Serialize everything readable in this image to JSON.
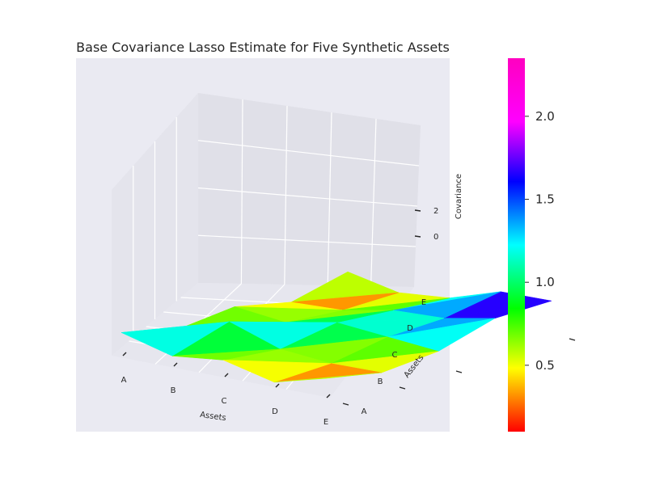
{
  "chart_data": {
    "type": "surface3d",
    "title": "Base Covariance Lasso Estimate for Five Synthetic Assets",
    "xlabel": "Assets",
    "ylabel": "Assets",
    "zlabel": "Covariance",
    "x_categories": [
      "A",
      "B",
      "C",
      "D",
      "E"
    ],
    "y_categories": [
      "A",
      "B",
      "C",
      "D",
      "E"
    ],
    "z_ticks": [
      "0",
      "2"
    ],
    "colormap": "hsv",
    "colorbar_ticks": [
      "0.5",
      "1.0",
      "1.5",
      "2.0"
    ],
    "colorbar_range": [
      0.1,
      2.35
    ],
    "grid": true,
    "matrix": [
      [
        1.6,
        0.6,
        1.1,
        0.2,
        1.3
      ],
      [
        0.6,
        2.0,
        0.7,
        0.4,
        0.5
      ],
      [
        1.1,
        0.7,
        1.5,
        1.2,
        0.9
      ],
      [
        0.2,
        0.4,
        1.2,
        1.4,
        2.2
      ],
      [
        1.3,
        0.5,
        0.9,
        2.2,
        2.3
      ]
    ]
  }
}
